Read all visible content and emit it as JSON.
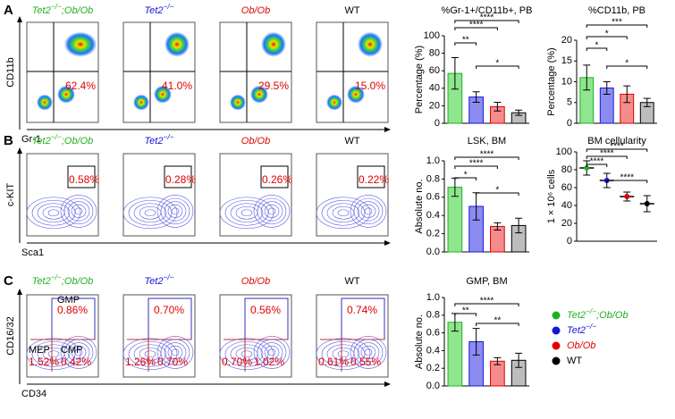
{
  "groups": [
    {
      "italic": true,
      "color": "#22b022",
      "parts": [
        {
          "text": "Tet2"
        },
        {
          "text": "−/−",
          "sup": true
        },
        {
          "text": ";Ob/Ob"
        }
      ]
    },
    {
      "italic": true,
      "color": "#1515d8",
      "parts": [
        {
          "text": "Tet2"
        },
        {
          "text": "−/−",
          "sup": true
        }
      ]
    },
    {
      "italic": true,
      "color": "#e00000",
      "parts": [
        {
          "text": "Ob/Ob"
        }
      ]
    },
    {
      "italic": false,
      "color": "#000000",
      "parts": [
        {
          "text": "WT"
        }
      ]
    }
  ],
  "panels": [
    {
      "letter": "A",
      "x_axis": "Gr-1",
      "y_axis": "CD11b",
      "plots": [
        {
          "values": [
            "62.4%"
          ]
        },
        {
          "values": [
            "41.0%"
          ]
        },
        {
          "values": [
            "29.5%"
          ]
        },
        {
          "values": [
            "15.0%"
          ]
        }
      ]
    },
    {
      "letter": "B",
      "x_axis": "Sca1",
      "y_axis": "c-KIT",
      "plots": [
        {
          "values": [
            "0.58%"
          ]
        },
        {
          "values": [
            "0.28%"
          ]
        },
        {
          "values": [
            "0.26%"
          ]
        },
        {
          "values": [
            "0.22%"
          ]
        }
      ]
    },
    {
      "letter": "C",
      "x_axis": "CD34",
      "y_axis": "CD16/32",
      "gates": [
        "GMP",
        "MEP",
        "CMP"
      ],
      "plots": [
        {
          "values": [
            "0.86%",
            "1.52%",
            "0.42%"
          ]
        },
        {
          "values": [
            "0.70%",
            "1.26%",
            "0.70%"
          ]
        },
        {
          "values": [
            "0.56%",
            "0.70%",
            "1.02%"
          ]
        },
        {
          "values": [
            "0.74%",
            "0.61%",
            "0.55%"
          ]
        }
      ]
    }
  ],
  "chart_data": [
    {
      "type": "bar",
      "title": "%Gr-1+/CD11b+, PB",
      "y_label": "Percentage (%)",
      "values": [
        57,
        30,
        19,
        12
      ],
      "errors": [
        18,
        6,
        5,
        3
      ],
      "colors": [
        "#8ee68e",
        "#8c8cf0",
        "#f58c8c",
        "#bdbdbd"
      ],
      "ylim": [
        0,
        100
      ],
      "yticks": [
        0,
        20,
        40,
        60,
        80,
        100
      ],
      "significance": [
        "**",
        "****",
        "****",
        "*"
      ]
    },
    {
      "type": "bar",
      "title": "%CD11b, PB",
      "y_label": "Percentage (%)",
      "values": [
        11,
        8.5,
        7,
        5
      ],
      "errors": [
        3,
        1.5,
        2,
        1
      ],
      "colors": [
        "#8ee68e",
        "#8c8cf0",
        "#f58c8c",
        "#bdbdbd"
      ],
      "ylim": [
        0,
        20
      ],
      "yticks": [
        0,
        5,
        10,
        15,
        20
      ],
      "significance": [
        "*",
        "*",
        "***",
        "*"
      ]
    },
    {
      "type": "bar",
      "title": "LSK, BM",
      "y_label": "Absolute no.",
      "values": [
        0.71,
        0.5,
        0.28,
        0.29
      ],
      "errors": [
        0.1,
        0.15,
        0.04,
        0.08
      ],
      "colors": [
        "#8ee68e",
        "#8c8cf0",
        "#f58c8c",
        "#bdbdbd"
      ],
      "ylim": [
        0,
        1
      ],
      "yticks": [
        {
          "value": 0,
          "label": "0.0"
        },
        0.2,
        0.4,
        0.6,
        0.8,
        {
          "value": 1,
          "label": "1.0"
        }
      ],
      "significance": [
        "*",
        "****",
        "****",
        "*"
      ]
    },
    {
      "type": "dot",
      "title": "BM cellularity",
      "y_label": "1 × 10⁶ cells",
      "values": [
        82,
        68,
        50,
        42
      ],
      "errors": [
        8,
        8,
        5,
        9
      ],
      "colors": [
        "#22b022",
        "#1515d8",
        "#e00000",
        "#000000"
      ],
      "ylim": [
        0,
        100
      ],
      "yticks": [
        0,
        20,
        40,
        60,
        80,
        100
      ],
      "significance": [
        "****",
        "****",
        "****",
        "****"
      ]
    },
    {
      "type": "bar",
      "title": "GMP, BM",
      "y_label": "Absolute no.",
      "values": [
        0.72,
        0.5,
        0.28,
        0.29
      ],
      "errors": [
        0.1,
        0.15,
        0.04,
        0.08
      ],
      "colors": [
        "#8ee68e",
        "#8c8cf0",
        "#f58c8c",
        "#bdbdbd"
      ],
      "ylim": [
        0,
        1
      ],
      "yticks": [
        {
          "value": 0,
          "label": "0.0"
        },
        0.2,
        0.4,
        0.6,
        0.8,
        {
          "value": 1,
          "label": "1.0"
        }
      ],
      "significance": [
        "**",
        "****",
        "**"
      ]
    }
  ]
}
